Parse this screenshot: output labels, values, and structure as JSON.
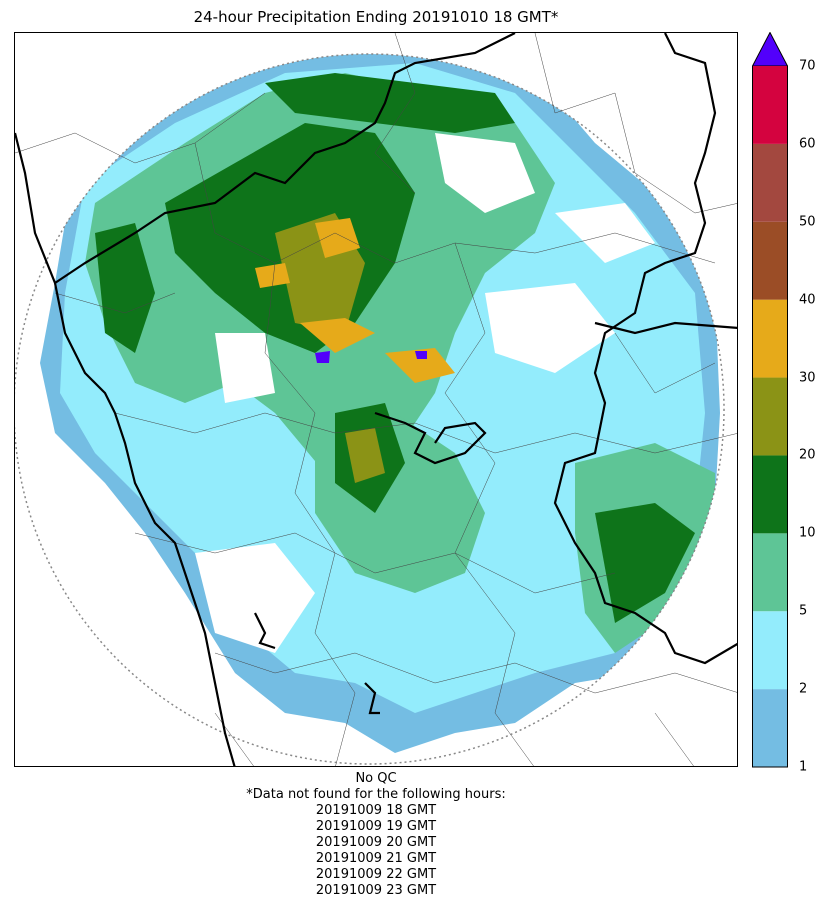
{
  "title": "24-hour Precipitation Ending 20191010 18 GMT*",
  "colorbar": {
    "ticks": [
      "1",
      "2",
      "5",
      "10",
      "20",
      "30",
      "40",
      "50",
      "60",
      "70"
    ],
    "bins": [
      {
        "from": "1",
        "to": "2",
        "color": "#74bde3"
      },
      {
        "from": "2",
        "to": "5",
        "color": "#93ecfc"
      },
      {
        "from": "5",
        "to": "10",
        "color": "#5ec596"
      },
      {
        "from": "10",
        "to": "20",
        "color": "#0e741a"
      },
      {
        "from": "20",
        "to": "30",
        "color": "#8b9316"
      },
      {
        "from": "30",
        "to": "40",
        "color": "#e6aa1a"
      },
      {
        "from": "40",
        "to": "50",
        "color": "#9b4d26"
      },
      {
        "from": "50",
        "to": "60",
        "color": "#a3483f"
      },
      {
        "from": "60",
        "to": "70",
        "color": "#d4033f"
      }
    ],
    "extend_color": "#5200fb"
  },
  "footer": {
    "qc": "No QC",
    "note": "*Data not found for the following hours:",
    "missing_hours": [
      "20191009 18 GMT",
      "20191009 19 GMT",
      "20191009 20 GMT",
      "20191009 21 GMT",
      "20191009 22 GMT",
      "20191009 23 GMT"
    ]
  }
}
